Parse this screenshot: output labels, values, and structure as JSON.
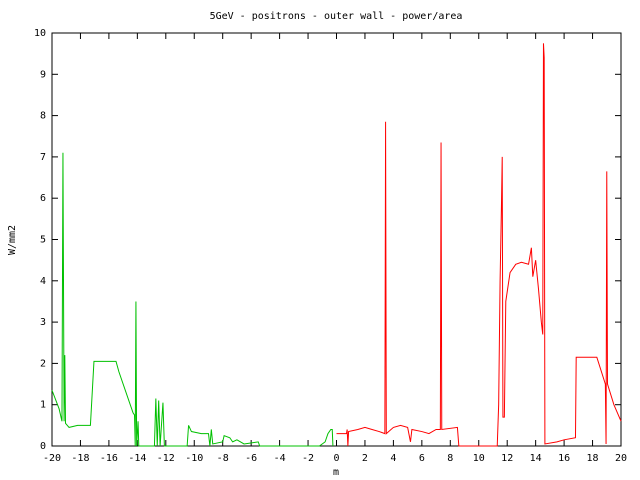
{
  "chart_data": {
    "type": "line",
    "title": "5GeV - positrons -  outer wall - power/area",
    "xlabel": "m",
    "ylabel": "W/mm2",
    "xlim": [
      -20,
      20
    ],
    "ylim": [
      0,
      10
    ],
    "xticks": [
      -20,
      -18,
      -16,
      -14,
      -12,
      -10,
      -8,
      -6,
      -4,
      -2,
      0,
      2,
      4,
      6,
      8,
      10,
      12,
      14,
      16,
      18,
      20
    ],
    "yticks": [
      0,
      1,
      2,
      3,
      4,
      5,
      6,
      7,
      8,
      9,
      10
    ],
    "grid": false,
    "series": [
      {
        "color": "#00c000",
        "x": [
          -20,
          -19.5,
          -19.3,
          -19.23,
          -19.15,
          -19.1,
          -19.05,
          -18.8,
          -18.2,
          -17.3,
          -17.05,
          -15.5,
          -15.3,
          -14.3,
          -14.2,
          -14.15,
          -14.1,
          -14.05,
          -13.95,
          -13.9,
          -12.8,
          -12.7,
          -12.6,
          -12.5,
          -12.4,
          -12.2,
          -12.1,
          -10.5,
          -10.4,
          -10.2,
          -9.5,
          -9.0,
          -8.9,
          -8.8,
          -8.7,
          -8.0,
          -7.9,
          -7.5,
          -7.3,
          -7.0,
          -6.5,
          -5.5,
          -5.4,
          -1.2,
          -0.8,
          -0.6,
          -0.4,
          -0.3,
          -0.25
        ],
        "values": [
          1.35,
          0.9,
          0.6,
          7.1,
          0.6,
          2.2,
          0.55,
          0.45,
          0.5,
          0.5,
          2.05,
          2.05,
          1.8,
          0.8,
          0.75,
          0,
          3.5,
          0,
          0.6,
          0,
          0,
          1.15,
          0,
          1.1,
          0,
          1.05,
          0,
          0,
          0.5,
          0.35,
          0.3,
          0.3,
          0,
          0.4,
          0.05,
          0.1,
          0.25,
          0.2,
          0.1,
          0.15,
          0.05,
          0.1,
          0,
          0,
          0.1,
          0.3,
          0.4,
          0.4,
          0
        ]
      },
      {
        "color": "#ff0000",
        "x": [
          0,
          0.7,
          0.75,
          0.8,
          0.85,
          1.5,
          2.0,
          2.5,
          3.0,
          3.4,
          3.45,
          3.5,
          4.0,
          4.5,
          5.0,
          5.2,
          5.3,
          6.0,
          6.5,
          7.0,
          7.3,
          7.35,
          7.4,
          8.5,
          8.6,
          11.3,
          11.4,
          11.5,
          11.6,
          11.65,
          11.7,
          11.8,
          11.9,
          12.2,
          12.6,
          13.0,
          13.5,
          13.7,
          13.8,
          14.0,
          14.2,
          14.4,
          14.5,
          14.55,
          14.6,
          14.65,
          15.5,
          16.0,
          16.8,
          16.85,
          18.3,
          18.9,
          18.95,
          19.0,
          19.05,
          19.5,
          20
        ],
        "values": [
          0.3,
          0.3,
          0.4,
          0,
          0.35,
          0.4,
          0.45,
          0.4,
          0.35,
          0.3,
          7.85,
          0.3,
          0.45,
          0.5,
          0.45,
          0.1,
          0.4,
          0.35,
          0.3,
          0.4,
          0.4,
          7.35,
          0.4,
          0.45,
          0,
          0,
          1,
          4,
          5.9,
          7,
          0.7,
          0.7,
          3.5,
          4.2,
          4.4,
          4.45,
          4.4,
          4.8,
          4.1,
          4.5,
          3.8,
          3.0,
          2.7,
          9.75,
          9.4,
          0.05,
          0.1,
          0.15,
          0.2,
          2.15,
          2.15,
          1.5,
          0.05,
          6.65,
          1.5,
          1,
          0.6
        ]
      }
    ]
  }
}
